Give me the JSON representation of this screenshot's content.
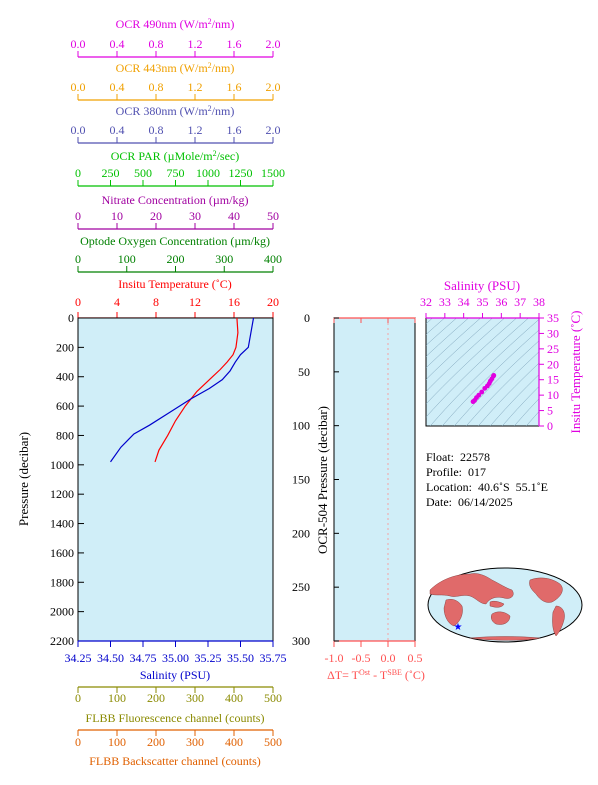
{
  "colors": {
    "ocr490": "#e000e0",
    "ocr443": "#f0a000",
    "ocr380": "#5050b0",
    "par": "#00c000",
    "nitrate": "#a000a0",
    "oxygen": "#008000",
    "temperature": "#ff0000",
    "salinity": "#0000cc",
    "fluorescence": "#8a8a00",
    "backscatter": "#e06000",
    "ts_magenta": "#e000e0",
    "dt_axis": "#ff5050",
    "plot_bg": "#d0eef8"
  },
  "top_axes": [
    {
      "key": "ocr490",
      "title": "OCR 490nm (W/m²/nm)",
      "ticks": [
        "0.0",
        "0.4",
        "0.8",
        "1.2",
        "1.6",
        "2.0"
      ]
    },
    {
      "key": "ocr443",
      "title": "OCR 443nm (W/m²/nm)",
      "ticks": [
        "0.0",
        "0.4",
        "0.8",
        "1.2",
        "1.6",
        "2.0"
      ]
    },
    {
      "key": "ocr380",
      "title": "OCR 380nm (W/m²/nm)",
      "ticks": [
        "0.0",
        "0.4",
        "0.8",
        "1.2",
        "1.6",
        "2.0"
      ]
    },
    {
      "key": "par",
      "title": "OCR PAR (µMole/m²/sec)",
      "ticks": [
        "0",
        "250",
        "500",
        "750",
        "1000",
        "1250",
        "1500"
      ]
    },
    {
      "key": "nitrate",
      "title": "Nitrate Concentration (µm/kg)",
      "ticks": [
        "0",
        "10",
        "20",
        "30",
        "40",
        "50"
      ]
    },
    {
      "key": "oxygen",
      "title": "Optode Oxygen Concentration (µm/kg)",
      "ticks": [
        "0",
        "100",
        "200",
        "300",
        "400"
      ]
    },
    {
      "key": "temperature",
      "title": "Insitu Temperature (˚C)",
      "ticks": [
        "0",
        "4",
        "8",
        "12",
        "16",
        "20"
      ]
    }
  ],
  "bottom_axes": [
    {
      "key": "salinity",
      "title": "Salinity (PSU)",
      "ticks": [
        "34.25",
        "34.50",
        "34.75",
        "35.00",
        "35.25",
        "35.50",
        "35.75"
      ]
    },
    {
      "key": "fluorescence",
      "title": "FLBB Fluorescence channel (counts)",
      "ticks": [
        "0",
        "100",
        "200",
        "300",
        "400",
        "500"
      ]
    },
    {
      "key": "backscatter",
      "title": "FLBB Backscatter channel (counts)",
      "ticks": [
        "0",
        "100",
        "200",
        "300",
        "400",
        "500"
      ]
    }
  ],
  "chart_data": [
    {
      "type": "line",
      "ylabel": "Pressure (decibar)",
      "ylim": [
        2200,
        0
      ],
      "yticks": [
        "0",
        "200",
        "400",
        "600",
        "800",
        "1000",
        "1200",
        "1400",
        "1600",
        "1800",
        "2000",
        "2200"
      ],
      "xlim_temperature": [
        0,
        20
      ],
      "xlim_salinity": [
        34.25,
        35.75
      ],
      "series": [
        {
          "name": "Insitu Temperature (˚C)",
          "x": [
            16.3,
            16.4,
            16.2,
            15.9,
            15.3,
            14.6,
            13.8,
            13.0,
            12.2,
            11.0,
            10.0,
            9.2,
            8.3,
            7.9
          ],
          "y": [
            0,
            100,
            200,
            250,
            300,
            350,
            400,
            450,
            500,
            600,
            700,
            800,
            900,
            980
          ]
        },
        {
          "name": "Salinity (PSU)",
          "x": [
            35.6,
            35.58,
            35.56,
            35.5,
            35.46,
            35.42,
            35.36,
            35.26,
            35.12,
            34.96,
            34.8,
            34.68,
            34.58,
            34.5
          ],
          "y": [
            0,
            100,
            200,
            250,
            300,
            360,
            420,
            480,
            550,
            640,
            730,
            790,
            880,
            980
          ]
        }
      ]
    },
    {
      "type": "line",
      "ylabel": "OCR-504 Pressure (decibar)",
      "xlabel": "ΔT= T^Ost - T^SBE (˚C)",
      "xlim": [
        -1.0,
        0.5
      ],
      "ylim": [
        300,
        0
      ],
      "xticks": [
        "-1.0",
        "-0.5",
        "0.0",
        "0.5"
      ],
      "yticks": [
        "0",
        "50",
        "100",
        "150",
        "200",
        "250",
        "300"
      ]
    },
    {
      "type": "scatter",
      "title": "Salinity (PSU)",
      "ylabel": "Insitu Temperature (˚C)",
      "xlim": [
        32,
        38
      ],
      "ylim": [
        0,
        35
      ],
      "xticks": [
        "32",
        "33",
        "34",
        "35",
        "36",
        "37",
        "38"
      ],
      "yticks": [
        "0",
        "5",
        "10",
        "15",
        "20",
        "25",
        "30",
        "35"
      ],
      "x": [
        34.5,
        34.58,
        34.68,
        34.8,
        34.96,
        35.12,
        35.26,
        35.36,
        35.42,
        35.5,
        35.58,
        35.6
      ],
      "y": [
        7.9,
        8.3,
        9.2,
        10.0,
        11.0,
        12.2,
        13.0,
        13.8,
        14.6,
        15.3,
        16.2,
        16.4
      ]
    }
  ],
  "info": {
    "float": "Float:  22578",
    "profile": "Profile:  017",
    "location": "Location:  40.6˚S  55.1˚E",
    "date": "Date:  06/14/2025"
  }
}
